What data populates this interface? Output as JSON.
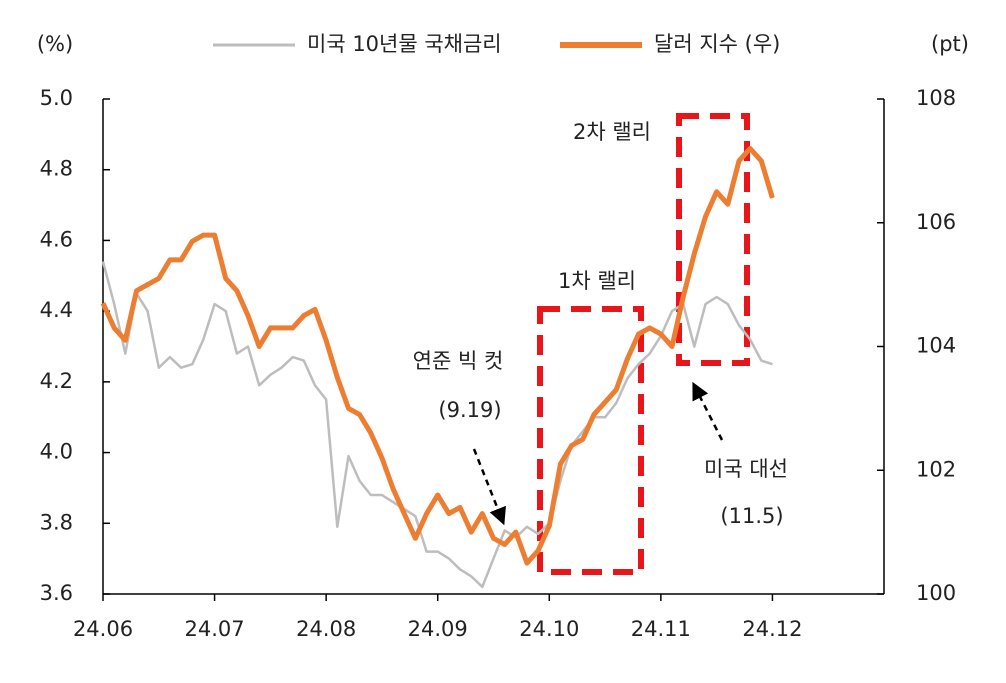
{
  "chart_data": {
    "type": "line",
    "y_label": "(%)",
    "y2_label": "(pt)",
    "categories": [
      "24.06",
      null,
      null,
      null,
      null,
      null,
      null,
      null,
      null,
      null,
      "24.07",
      null,
      null,
      null,
      null,
      null,
      null,
      null,
      null,
      null,
      "24.08",
      null,
      null,
      null,
      null,
      null,
      null,
      null,
      null,
      null,
      "24.09",
      null,
      null,
      null,
      null,
      null,
      null,
      null,
      null,
      null,
      "24.10",
      null,
      null,
      null,
      null,
      null,
      null,
      null,
      null,
      null,
      "24.11",
      null,
      null,
      null,
      null,
      null,
      null,
      null,
      null,
      null,
      "24.12",
      null,
      null,
      null,
      null,
      null,
      null,
      null,
      null,
      null
    ],
    "series": [
      {
        "name": "미국 10년물 국채금리",
        "color": "#bdbdbd",
        "axis": "y",
        "values": [
          4.54,
          4.42,
          4.28,
          4.45,
          4.4,
          4.24,
          4.27,
          4.24,
          4.25,
          4.32,
          4.42,
          4.4,
          4.28,
          4.3,
          4.19,
          4.22,
          4.24,
          4.27,
          4.26,
          4.19,
          4.15,
          3.79,
          3.99,
          3.92,
          3.88,
          3.88,
          3.86,
          3.84,
          3.82,
          3.72,
          3.72,
          3.7,
          3.67,
          3.65,
          3.62,
          3.7,
          3.78,
          3.76,
          3.79,
          3.77,
          3.8,
          3.92,
          4.02,
          4.06,
          4.1,
          4.1,
          4.14,
          4.21,
          4.25,
          4.28,
          4.33,
          4.4,
          4.42,
          4.3,
          4.42,
          4.44,
          4.42,
          4.36,
          4.32,
          4.26,
          4.25,
          null,
          null,
          null,
          null,
          null,
          null,
          null,
          null,
          null
        ]
      },
      {
        "name": "달러 지수 (우)",
        "color": "#ed7d31",
        "axis": "y2",
        "values": [
          104.7,
          104.3,
          104.1,
          104.9,
          105.0,
          105.1,
          105.4,
          105.4,
          105.7,
          105.8,
          105.8,
          105.1,
          104.9,
          104.5,
          104.0,
          104.3,
          104.3,
          104.3,
          104.5,
          104.6,
          104.1,
          103.5,
          103.0,
          102.9,
          102.6,
          102.2,
          101.7,
          101.3,
          100.9,
          101.3,
          101.6,
          101.3,
          101.4,
          101.0,
          101.3,
          100.9,
          100.8,
          101.0,
          100.5,
          100.7,
          101.1,
          102.1,
          102.4,
          102.5,
          102.9,
          103.1,
          103.3,
          103.8,
          104.2,
          104.3,
          104.2,
          104.0,
          104.8,
          105.5,
          106.1,
          106.5,
          106.3,
          107.0,
          107.2,
          107.0,
          106.4,
          null,
          null,
          null,
          null,
          null,
          null,
          null,
          null,
          null
        ]
      }
    ],
    "ylim": [
      3.6,
      5.0
    ],
    "yticks": [
      3.6,
      3.8,
      {
        "value": 4.0,
        "label": "4.0"
      },
      4.2,
      4.4,
      4.6,
      4.8,
      {
        "value": 5.0,
        "label": "5.0"
      }
    ],
    "y2lim": [
      100,
      108
    ],
    "y2ticks": [
      100,
      102,
      104,
      106,
      108
    ],
    "legend": "top",
    "annotations": [
      "1차 랠리",
      "2차 랠리",
      "연준 빅 컷",
      "(9.19)",
      "미국 대선",
      "(11.5)"
    ]
  }
}
